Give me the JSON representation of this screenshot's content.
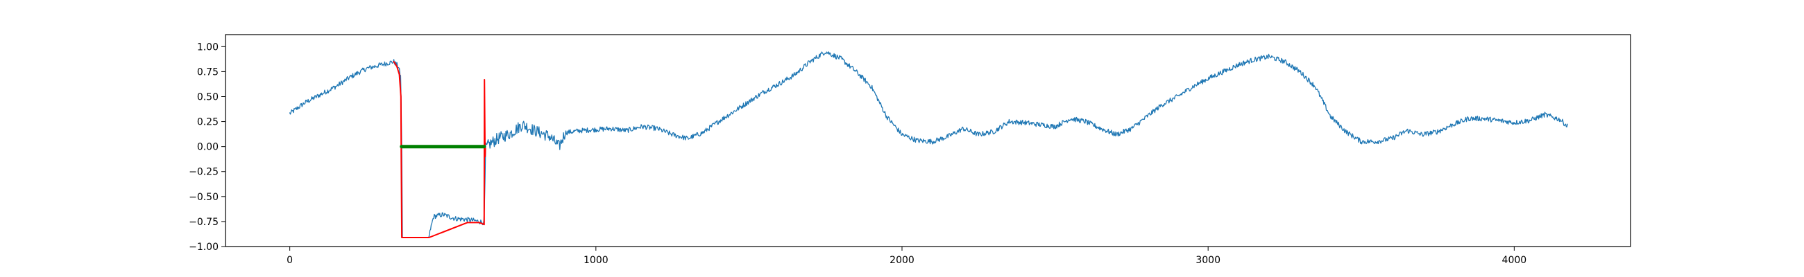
{
  "chart_data": {
    "type": "line",
    "title": "",
    "xlabel": "",
    "ylabel": "",
    "xlim": [
      -210,
      4380
    ],
    "ylim": [
      -1.0,
      1.12
    ],
    "grid": false,
    "legend": "none",
    "x_ticks": [
      0,
      1000,
      2000,
      3000,
      4000
    ],
    "x_tick_labels": [
      "0",
      "1000",
      "2000",
      "3000",
      "4000"
    ],
    "y_ticks": [
      1.0,
      0.75,
      0.5,
      0.25,
      0.0,
      -0.25,
      -0.5,
      -0.75,
      -1.0
    ],
    "y_tick_labels": [
      "1.00",
      "0.75",
      "0.50",
      "0.25",
      "0.00",
      "−0.25",
      "−0.50",
      "−0.75",
      "−1.00"
    ],
    "colors": {
      "signal": "#1f77b4",
      "segment": "#ff0000",
      "baseline": "#008000",
      "axes": "#000000"
    },
    "series": [
      {
        "color": "#1f77b4",
        "style": "noisy-line",
        "x": [
          0,
          50,
          100,
          150,
          200,
          250,
          300,
          340,
          355,
          362,
          365,
          368,
          372,
          400,
          440,
          455,
          460,
          470,
          500,
          540,
          580,
          620,
          635,
          640,
          650,
          680,
          720,
          760,
          800,
          850,
          880,
          900,
          950,
          1000,
          1050,
          1100,
          1150,
          1200,
          1250,
          1300,
          1350,
          1400,
          1450,
          1500,
          1550,
          1600,
          1650,
          1700,
          1750,
          1800,
          1850,
          1900,
          1950,
          2000,
          2050,
          2100,
          2150,
          2200,
          2250,
          2300,
          2350,
          2400,
          2450,
          2500,
          2550,
          2600,
          2650,
          2700,
          2750,
          2800,
          2850,
          2900,
          2950,
          3000,
          3050,
          3100,
          3150,
          3200,
          3250,
          3300,
          3350,
          3400,
          3450,
          3500,
          3550,
          3600,
          3650,
          3700,
          3750,
          3800,
          3850,
          3900,
          3950,
          4000,
          4050,
          4100,
          4150,
          4175
        ],
        "y": [
          0.33,
          0.44,
          0.52,
          0.6,
          0.7,
          0.78,
          0.82,
          0.85,
          0.8,
          0.7,
          0.3,
          -0.91,
          -0.91,
          -0.91,
          -0.91,
          -0.91,
          -0.82,
          -0.7,
          -0.68,
          -0.72,
          -0.73,
          -0.75,
          -0.76,
          -0.02,
          0.02,
          0.08,
          0.13,
          0.22,
          0.16,
          0.1,
          0.0,
          0.14,
          0.16,
          0.17,
          0.18,
          0.16,
          0.2,
          0.18,
          0.12,
          0.08,
          0.14,
          0.25,
          0.35,
          0.45,
          0.55,
          0.63,
          0.72,
          0.85,
          0.95,
          0.88,
          0.75,
          0.6,
          0.3,
          0.12,
          0.06,
          0.05,
          0.1,
          0.18,
          0.12,
          0.15,
          0.25,
          0.24,
          0.22,
          0.2,
          0.28,
          0.25,
          0.18,
          0.12,
          0.18,
          0.3,
          0.42,
          0.5,
          0.6,
          0.68,
          0.75,
          0.82,
          0.87,
          0.9,
          0.85,
          0.75,
          0.6,
          0.3,
          0.15,
          0.05,
          0.05,
          0.08,
          0.16,
          0.12,
          0.15,
          0.22,
          0.28,
          0.28,
          0.26,
          0.24,
          0.26,
          0.32,
          0.27,
          0.2
        ]
      },
      {
        "color": "#ff0000",
        "style": "line",
        "x": [
          340,
          350,
          358,
          363,
          364,
          366,
          372,
          440,
          455,
          580,
          620,
          635,
          636,
          638,
          639
        ],
        "y": [
          0.85,
          0.8,
          0.72,
          0.5,
          0.0,
          -0.91,
          -0.91,
          -0.91,
          -0.91,
          -0.76,
          -0.76,
          -0.78,
          0.67,
          -0.1,
          -0.02
        ]
      },
      {
        "color": "#008000",
        "style": "thick-line",
        "x": [
          365,
          635
        ],
        "y": [
          0.0,
          0.0
        ]
      }
    ]
  }
}
